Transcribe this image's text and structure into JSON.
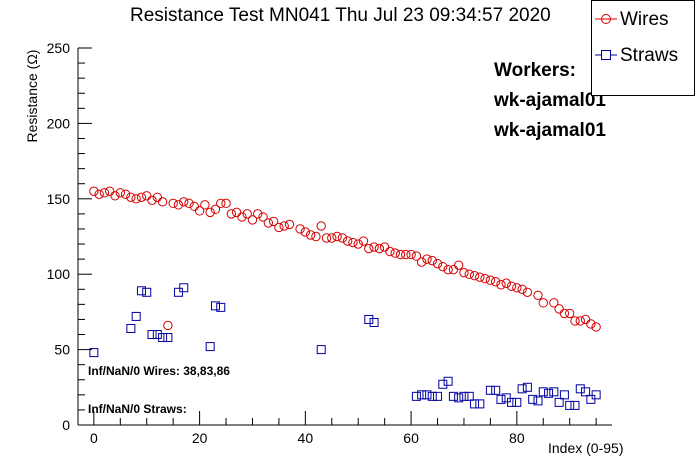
{
  "chart_data": {
    "type": "scatter",
    "title": "Resistance Test MN041 Thu Jul 23 09:34:57 2020",
    "xlabel": "Index (0-95)",
    "ylabel": "Resistance (Ω)",
    "xlim": [
      -3,
      98
    ],
    "ylim": [
      0,
      250
    ],
    "x_ticks": [
      0,
      20,
      40,
      60,
      80
    ],
    "y_ticks": [
      0,
      50,
      100,
      150,
      200,
      250
    ],
    "legend_position": "top-right",
    "series": [
      {
        "name": "Wires",
        "color": "#d40000",
        "marker": "circle",
        "x": [
          0,
          1,
          2,
          3,
          4,
          5,
          6,
          7,
          8,
          9,
          10,
          11,
          12,
          13,
          14,
          15,
          16,
          17,
          18,
          19,
          20,
          21,
          22,
          23,
          24,
          25,
          26,
          27,
          28,
          29,
          30,
          31,
          32,
          33,
          34,
          35,
          36,
          37,
          39,
          40,
          41,
          42,
          43,
          44,
          45,
          46,
          47,
          48,
          49,
          50,
          51,
          52,
          53,
          54,
          55,
          56,
          57,
          58,
          59,
          60,
          61,
          62,
          63,
          64,
          65,
          66,
          67,
          68,
          69,
          70,
          71,
          72,
          73,
          74,
          75,
          76,
          77,
          78,
          79,
          80,
          81,
          82,
          84,
          85,
          87,
          88,
          89,
          90,
          91,
          92,
          93,
          94,
          95
        ],
        "y": [
          155,
          153,
          154,
          155,
          152,
          154,
          153,
          151,
          150,
          151,
          152,
          149,
          151,
          148,
          66,
          147,
          146,
          148,
          147,
          145,
          142,
          146,
          141,
          143,
          147,
          147,
          140,
          141,
          138,
          140,
          136,
          140,
          138,
          134,
          135,
          131,
          132,
          133,
          130,
          128,
          126,
          125,
          132,
          124,
          124,
          125,
          124,
          122,
          121,
          120,
          122,
          117,
          118,
          117,
          118,
          115,
          114,
          113,
          113,
          113,
          112,
          108,
          110,
          109,
          107,
          105,
          103,
          103,
          106,
          101,
          100,
          99,
          98,
          97,
          96,
          95,
          93,
          94,
          92,
          91,
          90,
          88,
          86,
          81,
          81,
          77,
          74,
          74,
          69,
          69,
          70,
          67,
          65
        ]
      },
      {
        "name": "Straws",
        "color": "#0000a0",
        "marker": "square",
        "x": [
          0,
          7,
          8,
          9,
          10,
          11,
          12,
          13,
          14,
          16,
          17,
          22,
          23,
          24,
          43,
          52,
          53,
          61,
          62,
          63,
          64,
          65,
          66,
          67,
          68,
          69,
          70,
          71,
          72,
          73,
          75,
          76,
          77,
          78,
          79,
          80,
          81,
          82,
          83,
          84,
          85,
          86,
          87,
          88,
          89,
          90,
          91,
          92,
          93,
          94,
          95
        ],
        "y": [
          48,
          64,
          72,
          89,
          88,
          60,
          60,
          58,
          58,
          88,
          91,
          52,
          79,
          78,
          50,
          70,
          68,
          19,
          20,
          20,
          19,
          19,
          27,
          29,
          19,
          18,
          19,
          19,
          14,
          14,
          23,
          23,
          17,
          18,
          15,
          15,
          24,
          25,
          17,
          16,
          22,
          21,
          22,
          15,
          20,
          13,
          13,
          24,
          22,
          17,
          20
        ]
      }
    ],
    "annotations": [
      "Inf/NaN/0 Wires: 38,83,86",
      "Inf/NaN/0 Straws:"
    ],
    "workers_header": "Workers:",
    "workers": [
      "wk-ajamal01",
      "wk-ajamal01"
    ]
  }
}
